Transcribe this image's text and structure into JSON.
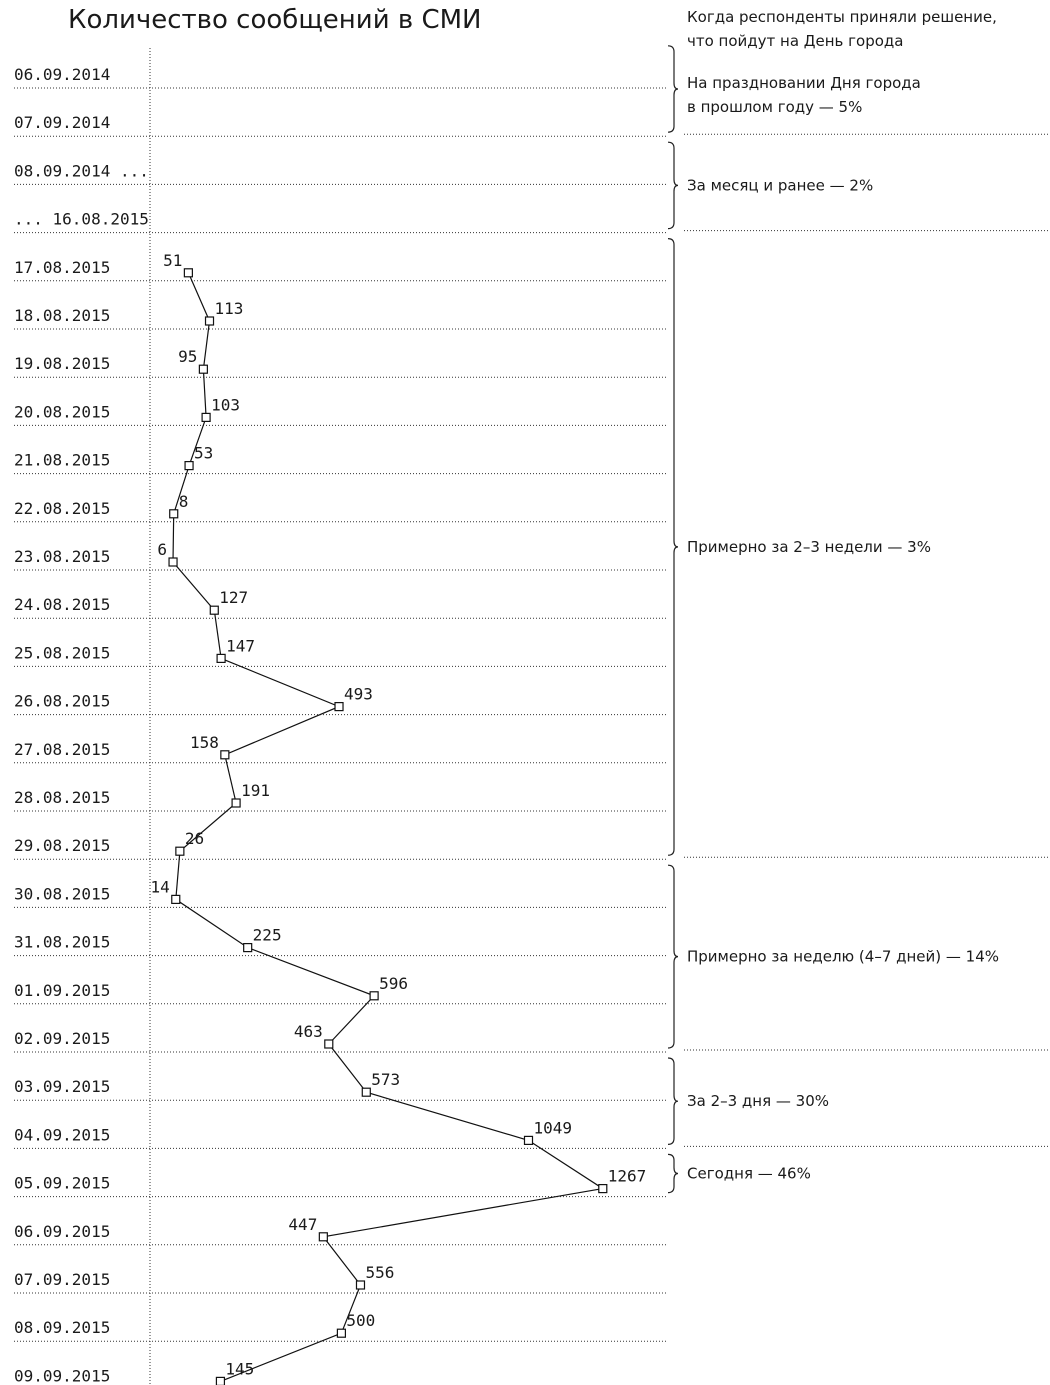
{
  "chart_data": {
    "type": "line",
    "title": "Количество сообщений в СМИ",
    "categories": [
      "06.09.2014",
      "07.09.2014",
      "08.09.2014 ...",
      "... 16.08.2015",
      "17.08.2015",
      "18.08.2015",
      "19.08.2015",
      "20.08.2015",
      "21.08.2015",
      "22.08.2015",
      "23.08.2015",
      "24.08.2015",
      "25.08.2015",
      "26.08.2015",
      "27.08.2015",
      "28.08.2015",
      "29.08.2015",
      "30.08.2015",
      "31.08.2015",
      "01.09.2015",
      "02.09.2015",
      "03.09.2015",
      "04.09.2015",
      "05.09.2015",
      "06.09.2015",
      "07.09.2015",
      "08.09.2015",
      "09.09.2015"
    ],
    "values": [
      null,
      null,
      null,
      null,
      51,
      113,
      95,
      103,
      53,
      8,
      6,
      127,
      147,
      493,
      158,
      191,
      26,
      14,
      225,
      596,
      463,
      573,
      1049,
      1267,
      447,
      556,
      500,
      145
    ],
    "grid": true
  },
  "decision": {
    "title_lines": [
      "Когда респонденты приняли решение,",
      "что пойдут на День города"
    ],
    "groups": [
      {
        "from": 0,
        "to": 1,
        "lines": [
          "На праздновании Дня города",
          "в прошлом году — 5%"
        ]
      },
      {
        "from": 2,
        "to": 3,
        "lines": [
          "За месяц и ранее — 2%"
        ]
      },
      {
        "from": 4,
        "to": 16,
        "lines": [
          "Примерно за 2–3 недели — 3%"
        ]
      },
      {
        "from": 17,
        "to": 20,
        "lines": [
          "Примерно за неделю (4–7 дней) — 14%"
        ]
      },
      {
        "from": 21,
        "to": 22,
        "lines": [
          "За 2–3 дня — 30%"
        ]
      },
      {
        "from": 23,
        "to": 23,
        "lines": [
          "Сегодня — 46%"
        ]
      }
    ]
  }
}
